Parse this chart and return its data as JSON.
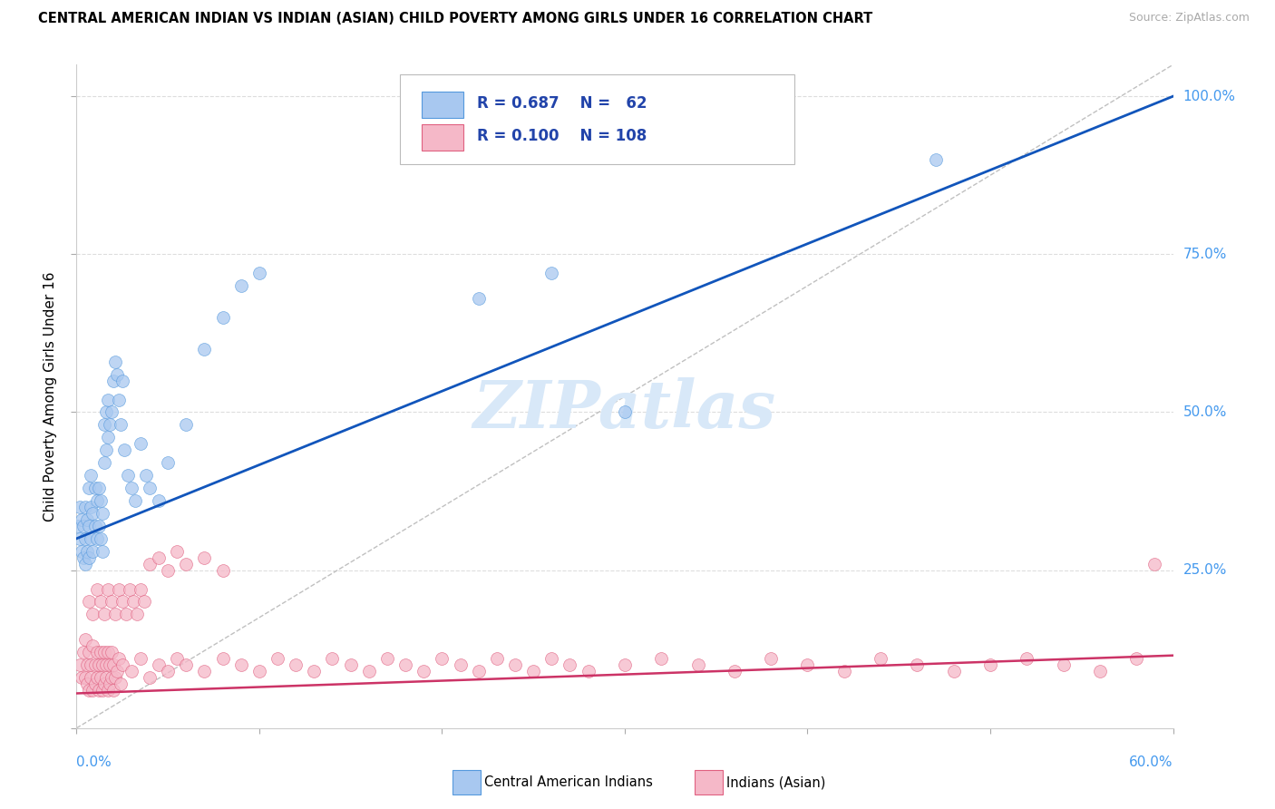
{
  "title": "CENTRAL AMERICAN INDIAN VS INDIAN (ASIAN) CHILD POVERTY AMONG GIRLS UNDER 16 CORRELATION CHART",
  "source": "Source: ZipAtlas.com",
  "ylabel": "Child Poverty Among Girls Under 16",
  "xmin": 0.0,
  "xmax": 0.6,
  "ymin": 0.0,
  "ymax": 1.05,
  "blue_R": 0.687,
  "blue_N": 62,
  "pink_R": 0.1,
  "pink_N": 108,
  "blue_color": "#A8C8F0",
  "pink_color": "#F5B8C8",
  "blue_edge_color": "#5599DD",
  "pink_edge_color": "#E06080",
  "blue_line_color": "#1155BB",
  "pink_line_color": "#CC3366",
  "legend_text_color": "#2244AA",
  "watermark_color": "#D8E8F8",
  "blue_line_x0": 0.0,
  "blue_line_y0": 0.3,
  "blue_line_x1": 0.6,
  "blue_line_y1": 1.0,
  "pink_line_x0": 0.0,
  "pink_line_y0": 0.055,
  "pink_line_x1": 0.6,
  "pink_line_y1": 0.115,
  "blue_scatter_x": [
    0.001,
    0.002,
    0.002,
    0.003,
    0.003,
    0.004,
    0.004,
    0.005,
    0.005,
    0.005,
    0.006,
    0.006,
    0.007,
    0.007,
    0.007,
    0.008,
    0.008,
    0.008,
    0.009,
    0.009,
    0.01,
    0.01,
    0.011,
    0.011,
    0.012,
    0.012,
    0.013,
    0.013,
    0.014,
    0.014,
    0.015,
    0.015,
    0.016,
    0.016,
    0.017,
    0.017,
    0.018,
    0.019,
    0.02,
    0.021,
    0.022,
    0.023,
    0.024,
    0.025,
    0.026,
    0.028,
    0.03,
    0.032,
    0.035,
    0.038,
    0.04,
    0.045,
    0.05,
    0.06,
    0.07,
    0.08,
    0.09,
    0.1,
    0.22,
    0.26,
    0.3,
    0.47
  ],
  "blue_scatter_y": [
    0.32,
    0.3,
    0.35,
    0.28,
    0.33,
    0.27,
    0.32,
    0.26,
    0.3,
    0.35,
    0.28,
    0.33,
    0.27,
    0.32,
    0.38,
    0.3,
    0.35,
    0.4,
    0.28,
    0.34,
    0.32,
    0.38,
    0.3,
    0.36,
    0.32,
    0.38,
    0.3,
    0.36,
    0.28,
    0.34,
    0.42,
    0.48,
    0.44,
    0.5,
    0.46,
    0.52,
    0.48,
    0.5,
    0.55,
    0.58,
    0.56,
    0.52,
    0.48,
    0.55,
    0.44,
    0.4,
    0.38,
    0.36,
    0.45,
    0.4,
    0.38,
    0.36,
    0.42,
    0.48,
    0.6,
    0.65,
    0.7,
    0.72,
    0.68,
    0.72,
    0.5,
    0.9
  ],
  "pink_scatter_x": [
    0.002,
    0.003,
    0.004,
    0.005,
    0.005,
    0.006,
    0.006,
    0.007,
    0.007,
    0.008,
    0.008,
    0.009,
    0.009,
    0.01,
    0.01,
    0.011,
    0.011,
    0.012,
    0.012,
    0.013,
    0.013,
    0.014,
    0.014,
    0.015,
    0.015,
    0.016,
    0.016,
    0.017,
    0.017,
    0.018,
    0.018,
    0.019,
    0.019,
    0.02,
    0.02,
    0.021,
    0.022,
    0.023,
    0.024,
    0.025,
    0.03,
    0.035,
    0.04,
    0.045,
    0.05,
    0.055,
    0.06,
    0.07,
    0.08,
    0.09,
    0.1,
    0.11,
    0.12,
    0.13,
    0.14,
    0.15,
    0.16,
    0.17,
    0.18,
    0.19,
    0.2,
    0.21,
    0.22,
    0.23,
    0.24,
    0.25,
    0.26,
    0.27,
    0.28,
    0.3,
    0.32,
    0.34,
    0.36,
    0.38,
    0.4,
    0.42,
    0.44,
    0.46,
    0.48,
    0.5,
    0.52,
    0.54,
    0.56,
    0.58,
    0.007,
    0.009,
    0.011,
    0.013,
    0.015,
    0.017,
    0.019,
    0.021,
    0.023,
    0.025,
    0.027,
    0.029,
    0.031,
    0.033,
    0.035,
    0.037,
    0.04,
    0.045,
    0.05,
    0.055,
    0.06,
    0.07,
    0.08,
    0.59
  ],
  "pink_scatter_y": [
    0.1,
    0.08,
    0.12,
    0.08,
    0.14,
    0.07,
    0.1,
    0.06,
    0.12,
    0.08,
    0.1,
    0.06,
    0.13,
    0.07,
    0.1,
    0.08,
    0.12,
    0.06,
    0.1,
    0.08,
    0.12,
    0.06,
    0.1,
    0.07,
    0.12,
    0.08,
    0.1,
    0.06,
    0.12,
    0.07,
    0.1,
    0.08,
    0.12,
    0.06,
    0.1,
    0.08,
    0.09,
    0.11,
    0.07,
    0.1,
    0.09,
    0.11,
    0.08,
    0.1,
    0.09,
    0.11,
    0.1,
    0.09,
    0.11,
    0.1,
    0.09,
    0.11,
    0.1,
    0.09,
    0.11,
    0.1,
    0.09,
    0.11,
    0.1,
    0.09,
    0.11,
    0.1,
    0.09,
    0.11,
    0.1,
    0.09,
    0.11,
    0.1,
    0.09,
    0.1,
    0.11,
    0.1,
    0.09,
    0.11,
    0.1,
    0.09,
    0.11,
    0.1,
    0.09,
    0.1,
    0.11,
    0.1,
    0.09,
    0.11,
    0.2,
    0.18,
    0.22,
    0.2,
    0.18,
    0.22,
    0.2,
    0.18,
    0.22,
    0.2,
    0.18,
    0.22,
    0.2,
    0.18,
    0.22,
    0.2,
    0.26,
    0.27,
    0.25,
    0.28,
    0.26,
    0.27,
    0.25,
    0.26
  ]
}
